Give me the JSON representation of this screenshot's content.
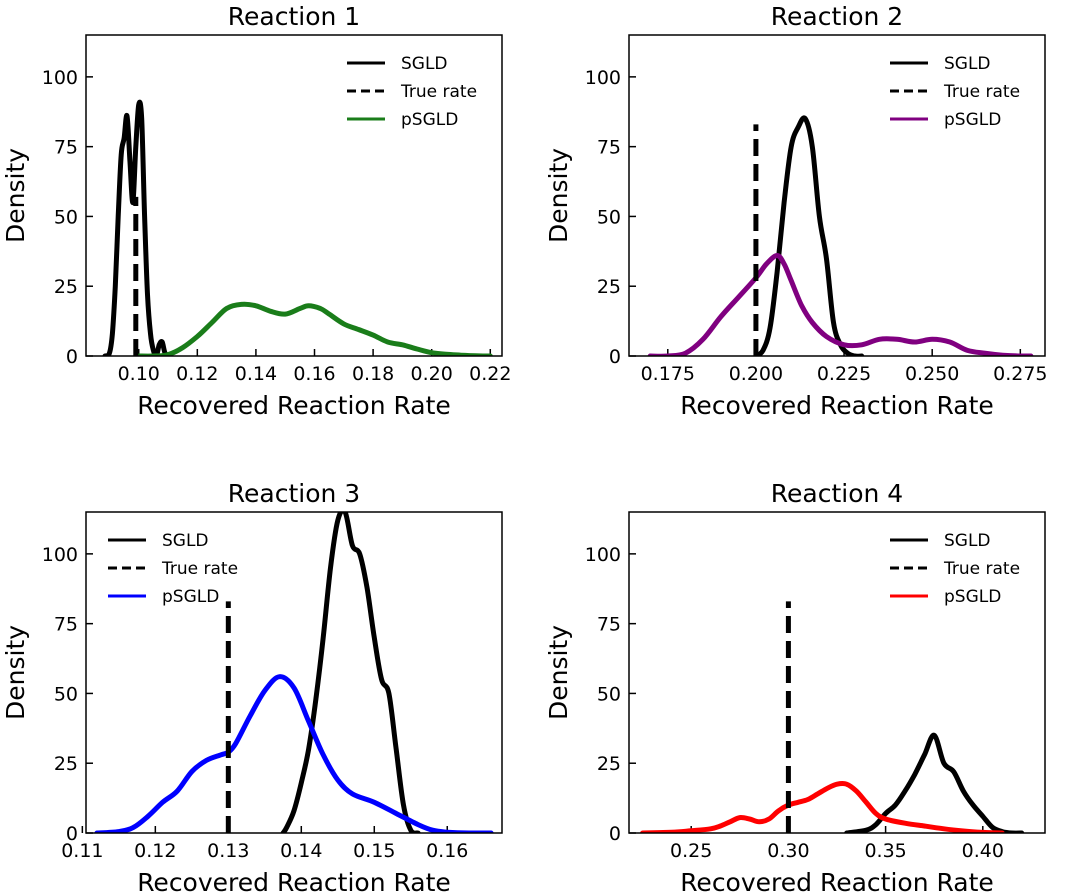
{
  "chart_data": [
    {
      "type": "line",
      "title": "Reaction 1",
      "xlabel": "Recovered Reaction Rate",
      "ylabel": "Density",
      "xlim": [
        0.082,
        0.224
      ],
      "ylim": [
        0,
        115
      ],
      "xticks": [
        0.1,
        0.12,
        0.14,
        0.16,
        0.18,
        0.2,
        0.22
      ],
      "xtick_labels": [
        "0.10",
        "0.12",
        "0.14",
        "0.16",
        "0.18",
        "0.20",
        "0.22"
      ],
      "yticks": [
        0,
        25,
        50,
        75,
        100
      ],
      "ytick_labels": [
        "0",
        "25",
        "50",
        "75",
        "100"
      ],
      "legend_position": "top-right",
      "legend": [
        {
          "label": "SGLD",
          "color": "#000000",
          "style": "solid"
        },
        {
          "label": "True rate",
          "color": "#000000",
          "style": "dashed"
        },
        {
          "label": "pSGLD",
          "color": "#1a7d1a",
          "style": "solid"
        }
      ],
      "true_rate": {
        "x": 0.099,
        "y_top": 57
      },
      "series": [
        {
          "name": "SGLD",
          "color": "#000000",
          "x": [
            0.0885,
            0.09,
            0.091,
            0.092,
            0.093,
            0.094,
            0.095,
            0.096,
            0.097,
            0.098,
            0.099,
            0.1,
            0.101,
            0.102,
            0.103,
            0.104,
            0.105,
            0.106,
            0.107,
            0.108,
            0.109,
            0.1105
          ],
          "y": [
            0,
            1,
            8,
            25,
            50,
            72,
            78,
            86,
            70,
            55,
            75,
            90,
            85,
            50,
            22,
            8,
            2,
            0,
            4,
            5,
            1,
            0
          ]
        },
        {
          "name": "pSGLD",
          "color": "#1a7d1a",
          "x": [
            0.1,
            0.105,
            0.11,
            0.115,
            0.12,
            0.125,
            0.13,
            0.135,
            0.14,
            0.145,
            0.15,
            0.155,
            0.158,
            0.162,
            0.165,
            0.17,
            0.175,
            0.18,
            0.185,
            0.19,
            0.195,
            0.2,
            0.205,
            0.21,
            0.215,
            0.22
          ],
          "y": [
            0,
            0,
            0.5,
            3,
            7,
            12,
            17,
            18.5,
            18,
            16,
            15,
            17,
            18,
            17,
            15,
            11.5,
            9.5,
            7.5,
            5,
            4,
            2.5,
            1.2,
            0.6,
            0.3,
            0.1,
            0
          ]
        }
      ]
    },
    {
      "type": "line",
      "title": "Reaction 2",
      "xlabel": "Recovered Reaction Rate",
      "ylabel": "Density",
      "xlim": [
        0.164,
        0.282
      ],
      "ylim": [
        0,
        115
      ],
      "xticks": [
        0.175,
        0.2,
        0.225,
        0.25,
        0.275
      ],
      "xtick_labels": [
        "0.175",
        "0.200",
        "0.225",
        "0.250",
        "0.275"
      ],
      "yticks": [
        0,
        25,
        50,
        75,
        100
      ],
      "ytick_labels": [
        "0",
        "25",
        "50",
        "75",
        "100"
      ],
      "legend_position": "top-right",
      "legend": [
        {
          "label": "SGLD",
          "color": "#000000",
          "style": "solid"
        },
        {
          "label": "True rate",
          "color": "#000000",
          "style": "dashed"
        },
        {
          "label": "pSGLD",
          "color": "#800080",
          "style": "solid"
        }
      ],
      "true_rate": {
        "x": 0.2,
        "y_top": 83
      },
      "series": [
        {
          "name": "SGLD",
          "color": "#000000",
          "x": [
            0.2,
            0.202,
            0.204,
            0.206,
            0.208,
            0.21,
            0.212,
            0.214,
            0.216,
            0.218,
            0.22,
            0.222,
            0.224,
            0.226,
            0.228,
            0.23
          ],
          "y": [
            0,
            2,
            10,
            30,
            55,
            75,
            82,
            85,
            75,
            50,
            35,
            12,
            4,
            1,
            0,
            0
          ]
        },
        {
          "name": "pSGLD",
          "color": "#800080",
          "x": [
            0.17,
            0.175,
            0.18,
            0.185,
            0.19,
            0.195,
            0.2,
            0.203,
            0.206,
            0.208,
            0.21,
            0.213,
            0.216,
            0.22,
            0.225,
            0.23,
            0.235,
            0.24,
            0.245,
            0.25,
            0.255,
            0.26,
            0.265,
            0.27,
            0.275,
            0.278
          ],
          "y": [
            0,
            0,
            1,
            6,
            14,
            21,
            28,
            33,
            36,
            33,
            27,
            18,
            12,
            7,
            4,
            4,
            6,
            6,
            5,
            6,
            5,
            2,
            1,
            0.3,
            0,
            0
          ]
        }
      ]
    },
    {
      "type": "line",
      "title": "Reaction 3",
      "xlabel": "Recovered Reaction Rate",
      "ylabel": "Density",
      "xlim": [
        0.1105,
        0.1675
      ],
      "ylim": [
        0,
        115
      ],
      "xticks": [
        0.11,
        0.12,
        0.13,
        0.14,
        0.15,
        0.16
      ],
      "xtick_labels": [
        "0.11",
        "0.12",
        "0.13",
        "0.14",
        "0.15",
        "0.16"
      ],
      "yticks": [
        0,
        25,
        50,
        75,
        100
      ],
      "ytick_labels": [
        "0",
        "25",
        "50",
        "75",
        "100"
      ],
      "legend_position": "top-left",
      "legend": [
        {
          "label": "SGLD",
          "color": "#000000",
          "style": "solid"
        },
        {
          "label": "True rate",
          "color": "#000000",
          "style": "dashed"
        },
        {
          "label": "pSGLD",
          "color": "#0000ff",
          "style": "solid"
        }
      ],
      "true_rate": {
        "x": 0.13,
        "y_top": 83
      },
      "series": [
        {
          "name": "SGLD",
          "color": "#000000",
          "x": [
            0.1375,
            0.138,
            0.139,
            0.14,
            0.141,
            0.142,
            0.143,
            0.144,
            0.145,
            0.146,
            0.147,
            0.148,
            0.149,
            0.15,
            0.151,
            0.152,
            0.153,
            0.154,
            0.155,
            0.156
          ],
          "y": [
            0,
            2,
            8,
            18,
            30,
            48,
            70,
            95,
            112,
            115,
            103,
            100,
            88,
            70,
            55,
            50,
            30,
            10,
            1,
            0
          ]
        },
        {
          "name": "pSGLD",
          "color": "#0000ff",
          "x": [
            0.112,
            0.115,
            0.117,
            0.119,
            0.121,
            0.123,
            0.125,
            0.127,
            0.129,
            0.13,
            0.131,
            0.133,
            0.135,
            0.137,
            0.139,
            0.141,
            0.143,
            0.145,
            0.147,
            0.15,
            0.153,
            0.156,
            0.158,
            0.16,
            0.163,
            0.166
          ],
          "y": [
            0,
            0.5,
            2,
            6,
            11,
            15,
            22,
            26,
            28,
            29,
            32,
            42,
            51,
            56,
            52,
            40,
            28,
            19,
            14,
            11,
            7,
            3,
            1,
            0.3,
            0,
            0
          ]
        }
      ]
    },
    {
      "type": "line",
      "title": "Reaction 4",
      "xlabel": "Recovered Reaction Rate",
      "ylabel": "Density",
      "xlim": [
        0.218,
        0.432
      ],
      "ylim": [
        0,
        115
      ],
      "xticks": [
        0.25,
        0.3,
        0.35,
        0.4
      ],
      "xtick_labels": [
        "0.25",
        "0.30",
        "0.35",
        "0.40"
      ],
      "yticks": [
        0,
        25,
        50,
        75,
        100
      ],
      "ytick_labels": [
        "0",
        "25",
        "50",
        "75",
        "100"
      ],
      "legend_position": "top-right",
      "legend": [
        {
          "label": "SGLD",
          "color": "#000000",
          "style": "solid"
        },
        {
          "label": "True rate",
          "color": "#000000",
          "style": "dashed"
        },
        {
          "label": "pSGLD",
          "color": "#ff0000",
          "style": "solid"
        }
      ],
      "true_rate": {
        "x": 0.3,
        "y_top": 83
      },
      "series": [
        {
          "name": "SGLD",
          "color": "#000000",
          "x": [
            0.33,
            0.34,
            0.345,
            0.35,
            0.355,
            0.36,
            0.365,
            0.37,
            0.375,
            0.38,
            0.385,
            0.39,
            0.395,
            0.4,
            0.405,
            0.41,
            0.415,
            0.42
          ],
          "y": [
            0,
            1,
            3,
            7,
            10,
            15,
            21,
            28,
            35,
            25,
            22,
            15,
            10,
            6,
            2,
            0.5,
            0,
            0
          ]
        },
        {
          "name": "pSGLD",
          "color": "#ff0000",
          "x": [
            0.225,
            0.24,
            0.25,
            0.26,
            0.265,
            0.27,
            0.275,
            0.28,
            0.285,
            0.29,
            0.295,
            0.3,
            0.305,
            0.31,
            0.315,
            0.32,
            0.325,
            0.33,
            0.335,
            0.34,
            0.345,
            0.35,
            0.36,
            0.37,
            0.38,
            0.39,
            0.4,
            0.41
          ],
          "y": [
            0,
            0.3,
            0.8,
            1.5,
            2.5,
            4,
            5.5,
            5,
            4,
            5,
            8,
            10,
            11,
            12,
            14,
            16,
            17.5,
            17.5,
            15,
            11,
            7,
            5,
            3.5,
            2.5,
            1.5,
            0.7,
            0.2,
            0
          ]
        }
      ]
    }
  ]
}
